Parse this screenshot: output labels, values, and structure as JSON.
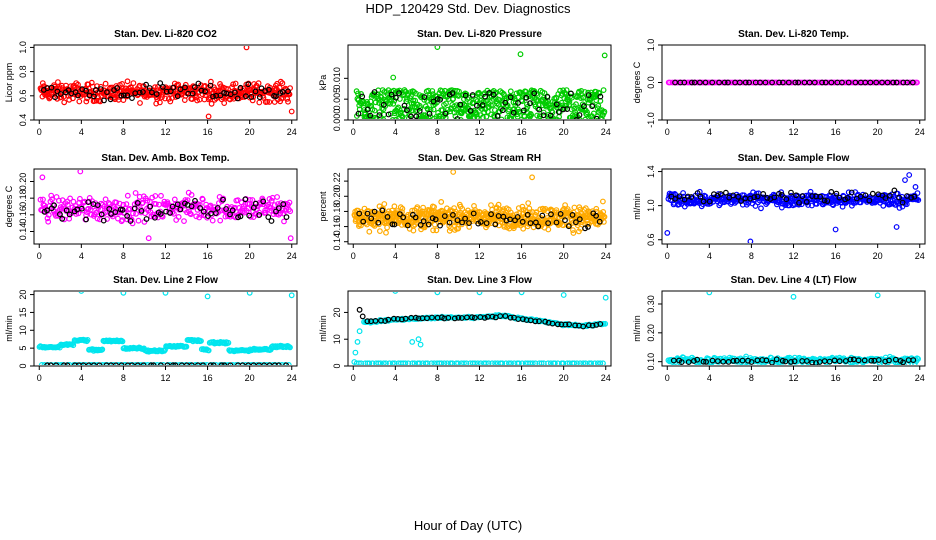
{
  "page": {
    "title": "HDP_120429  Std. Dev. Diagnostics",
    "x_caption": "Hour of Day (UTC)"
  },
  "chart_data": [
    {
      "type": "scatter",
      "title": "Stan. Dev. Li-820 CO2",
      "ylabel": "Licor ppm",
      "xlim": [
        -0.5,
        24.5
      ],
      "ylim": [
        0.4,
        1.02
      ],
      "xticks": [
        "0",
        "4",
        "8",
        "12",
        "16",
        "20",
        "24"
      ],
      "yticks": [
        "0.4",
        "0.6",
        "0.8",
        "1.0"
      ],
      "yticks_values": [
        0.4,
        0.6,
        0.8,
        1.0
      ],
      "series": [
        {
          "color": "#ff0000",
          "kind": "dense",
          "n": 420,
          "center": 0.63,
          "spread": 0.07,
          "x_from": 0.1,
          "x_to": 23.9,
          "outliers": [
            [
              19.7,
              1.0
            ],
            [
              16.1,
              0.43
            ],
            [
              24.0,
              0.47
            ]
          ]
        },
        {
          "color": "#000000",
          "kind": "dense",
          "n": 70,
          "center": 0.63,
          "spread": 0.06,
          "x_from": 0.3,
          "x_to": 23.8,
          "outliers": []
        }
      ]
    },
    {
      "type": "scatter",
      "title": "Stan. Dev. Li-820 Pressure",
      "ylabel": "kPa",
      "xlim": [
        -0.5,
        24.5
      ],
      "ylim": [
        0.0,
        0.018
      ],
      "xticks": [
        "0",
        "4",
        "8",
        "12",
        "16",
        "20",
        "24"
      ],
      "yticks": [
        "0.000",
        "0.005",
        "0.010"
      ],
      "yticks_values": [
        0.0,
        0.005,
        0.01
      ],
      "series": [
        {
          "color": "#00cc00",
          "kind": "band",
          "n": 560,
          "low": 0.0,
          "high": 0.0072,
          "x_from": 0.3,
          "x_to": 23.9,
          "outliers": [
            [
              8.0,
              0.0175
            ],
            [
              15.9,
              0.0158
            ],
            [
              23.9,
              0.0155
            ],
            [
              3.8,
              0.0102
            ]
          ]
        },
        {
          "color": "#000000",
          "kind": "band",
          "n": 60,
          "low": 0.0,
          "high": 0.0068,
          "x_from": 0.4,
          "x_to": 23.8,
          "outliers": []
        }
      ]
    },
    {
      "type": "scatter",
      "title": "Stan. Dev. Li-820 Temp.",
      "ylabel": "degrees C",
      "xlim": [
        -0.5,
        24.5
      ],
      "ylim": [
        -1.0,
        1.0
      ],
      "xticks": [
        "0",
        "4",
        "8",
        "12",
        "16",
        "20",
        "24"
      ],
      "yticks": [
        "-1.0",
        "0.0",
        "1.0"
      ],
      "yticks_values": [
        -1.0,
        0.0,
        1.0
      ],
      "series": [
        {
          "color": "#ff00ff",
          "kind": "line",
          "n": 150,
          "value": 0.0,
          "x_from": 0.1,
          "x_to": 23.9,
          "outliers": []
        },
        {
          "color": "#000000",
          "kind": "line",
          "n": 45,
          "value": 0.0,
          "x_from": 0.5,
          "x_to": 23.8,
          "outliers": []
        }
      ]
    },
    {
      "type": "scatter",
      "title": "Stan. Dev. Amb. Box Temp.",
      "ylabel": "degrees C",
      "xlim": [
        -0.5,
        24.5
      ],
      "ylim": [
        0.125,
        0.215
      ],
      "xticks": [
        "0",
        "4",
        "8",
        "12",
        "16",
        "20",
        "24"
      ],
      "yticks": [
        "0.14",
        "0.16",
        "0.18",
        "0.20"
      ],
      "yticks_values": [
        0.14,
        0.16,
        0.18,
        0.2
      ],
      "series": [
        {
          "color": "#ff00ff",
          "kind": "dense",
          "n": 330,
          "center": 0.168,
          "spread": 0.014,
          "x_from": 0.1,
          "x_to": 23.9,
          "outliers": [
            [
              0.3,
              0.205
            ],
            [
              3.9,
              0.212
            ],
            [
              10.4,
              0.132
            ],
            [
              23.9,
              0.132
            ]
          ]
        },
        {
          "color": "#000000",
          "kind": "dense",
          "n": 65,
          "center": 0.165,
          "spread": 0.013,
          "x_from": 0.3,
          "x_to": 23.8,
          "outliers": []
        }
      ]
    },
    {
      "type": "scatter",
      "title": "Stan. Dev. Gas Stream RH",
      "ylabel": "percent",
      "xlim": [
        -0.5,
        24.5
      ],
      "ylim": [
        0.137,
        0.236
      ],
      "xticks": [
        "0",
        "4",
        "8",
        "12",
        "16",
        "20",
        "24"
      ],
      "yticks": [
        "0.14",
        "0.16",
        "0.18",
        "0.20",
        "0.22"
      ],
      "yticks_values": [
        0.14,
        0.16,
        0.18,
        0.2,
        0.22
      ],
      "series": [
        {
          "color": "#ffaa00",
          "kind": "dense",
          "n": 620,
          "center": 0.172,
          "spread": 0.014,
          "x_from": 0.1,
          "x_to": 23.9,
          "outliers": [
            [
              9.5,
              0.232
            ],
            [
              17.0,
              0.225
            ]
          ]
        },
        {
          "color": "#000000",
          "kind": "dense",
          "n": 60,
          "center": 0.168,
          "spread": 0.012,
          "x_from": 0.4,
          "x_to": 23.8,
          "outliers": []
        }
      ]
    },
    {
      "type": "scatter",
      "title": "Stan. Dev. Sample Flow",
      "ylabel": "ml/min",
      "xlim": [
        -0.5,
        24.5
      ],
      "ylim": [
        0.55,
        1.43
      ],
      "xticks": [
        "0",
        "4",
        "8",
        "12",
        "16",
        "20",
        "24"
      ],
      "yticks": [
        "0.6",
        "1.0",
        "1.4"
      ],
      "yticks_values": [
        0.6,
        1.0,
        1.4
      ],
      "series": [
        {
          "color": "#0000ff",
          "kind": "dense",
          "n": 400,
          "center": 1.07,
          "spread": 0.07,
          "x_from": 0.1,
          "x_to": 23.9,
          "outliers": [
            [
              0.0,
              0.68
            ],
            [
              7.9,
              0.58
            ],
            [
              16.0,
              0.72
            ],
            [
              21.8,
              0.75
            ],
            [
              22.6,
              1.3
            ],
            [
              23.0,
              1.36
            ],
            [
              23.6,
              1.22
            ]
          ]
        },
        {
          "color": "#000000",
          "kind": "dense",
          "n": 60,
          "center": 1.1,
          "spread": 0.06,
          "x_from": 0.3,
          "x_to": 23.8,
          "outliers": []
        }
      ]
    },
    {
      "type": "scatter",
      "title": "Stan. Dev. Line 2 Flow",
      "ylabel": "ml/min",
      "xlim": [
        -0.5,
        24.5
      ],
      "ylim": [
        0,
        21
      ],
      "xticks": [
        "0",
        "4",
        "8",
        "12",
        "16",
        "20",
        "24"
      ],
      "yticks": [
        "0",
        "5",
        "10",
        "15",
        "20"
      ],
      "yticks_values": [
        0,
        5,
        10,
        15,
        20
      ],
      "series": [
        {
          "color": "#00e5ee",
          "kind": "steps",
          "n": 260,
          "x_from": 0.0,
          "x_to": 23.9,
          "steps": [
            [
              0,
              2,
              5.3
            ],
            [
              2,
              3.3,
              6.0
            ],
            [
              3.3,
              4.7,
              7.2
            ],
            [
              4.7,
              6,
              4.5
            ],
            [
              6,
              8,
              7.0
            ],
            [
              8,
              10,
              5.0
            ],
            [
              10,
              12,
              4.3
            ],
            [
              12,
              14,
              5.5
            ],
            [
              14,
              15.4,
              7.2
            ],
            [
              15.4,
              16.2,
              4.6
            ],
            [
              16.2,
              18,
              6.5
            ],
            [
              18,
              20,
              4.3
            ],
            [
              20,
              22,
              4.6
            ],
            [
              22,
              24,
              5.4
            ]
          ],
          "outliers": [
            [
              4.0,
              21
            ],
            [
              8.0,
              20.5
            ],
            [
              12.0,
              20.5
            ],
            [
              16.0,
              19.5
            ],
            [
              20.0,
              20.5
            ],
            [
              24.0,
              19.8
            ]
          ]
        },
        {
          "color": "#00e5ee",
          "kind": "line",
          "n": 80,
          "value": 0.3,
          "x_from": 0.2,
          "x_to": 23.9,
          "outliers": []
        },
        {
          "color": "#000000",
          "kind": "line",
          "n": 45,
          "value": 0.2,
          "x_from": 0.5,
          "x_to": 23.8,
          "outliers": []
        }
      ]
    },
    {
      "type": "scatter",
      "title": "Stan. Dev. Line 3 Flow",
      "ylabel": "ml/min",
      "xlim": [
        -0.5,
        24.5
      ],
      "ylim": [
        0,
        28
      ],
      "xticks": [
        "0",
        "4",
        "8",
        "12",
        "16",
        "20",
        "24"
      ],
      "yticks": [
        "0",
        "10",
        "20"
      ],
      "yticks_values": [
        0,
        10,
        20
      ],
      "series": [
        {
          "color": "#00e5ee",
          "kind": "curve",
          "n": 230,
          "x_from": 1.0,
          "x_to": 24.0,
          "curve": [
            [
              1.0,
              16.2
            ],
            [
              4.0,
              17.3
            ],
            [
              8.0,
              18.0
            ],
            [
              12.0,
              18.2
            ],
            [
              14.0,
              18.8
            ],
            [
              16.0,
              17.8
            ],
            [
              20.0,
              15.5
            ],
            [
              22.0,
              15.0
            ],
            [
              24.0,
              15.8
            ]
          ],
          "outliers": [
            [
              0.1,
              1.5
            ],
            [
              0.2,
              5
            ],
            [
              0.4,
              9
            ],
            [
              0.6,
              13
            ],
            [
              5.6,
              9
            ],
            [
              6.2,
              10
            ],
            [
              6.4,
              8
            ],
            [
              4.0,
              28
            ],
            [
              8.0,
              27.5
            ],
            [
              12.0,
              27.5
            ],
            [
              16.0,
              27.5
            ],
            [
              20.0,
              26.5
            ],
            [
              24.0,
              25.5
            ]
          ]
        },
        {
          "color": "#00e5ee",
          "kind": "line",
          "n": 90,
          "value": 1.0,
          "x_from": 0.2,
          "x_to": 23.9,
          "outliers": []
        },
        {
          "color": "#000000",
          "kind": "curve",
          "n": 55,
          "x_from": 1.2,
          "x_to": 23.8,
          "curve": [
            [
              1.0,
              16.5
            ],
            [
              4.0,
              17.5
            ],
            [
              8.0,
              18.0
            ],
            [
              12.0,
              18.0
            ],
            [
              14.0,
              18.6
            ],
            [
              16.0,
              17.5
            ],
            [
              20.0,
              15.5
            ],
            [
              22.0,
              15.0
            ],
            [
              24.0,
              15.6
            ]
          ],
          "outliers": [
            [
              0.6,
              21
            ],
            [
              0.9,
              18.5
            ]
          ]
        }
      ]
    },
    {
      "type": "scatter",
      "title": "Stan. Dev. Line 4 (LT) Flow",
      "ylabel": "ml/min",
      "xlim": [
        -0.5,
        24.5
      ],
      "ylim": [
        0.085,
        0.345
      ],
      "xticks": [
        "0",
        "4",
        "8",
        "12",
        "16",
        "20",
        "24"
      ],
      "yticks": [
        "0.10",
        "0.20",
        "0.30"
      ],
      "yticks_values": [
        0.1,
        0.2,
        0.3
      ],
      "series": [
        {
          "color": "#00e5ee",
          "kind": "dense",
          "n": 300,
          "center": 0.105,
          "spread": 0.009,
          "x_from": 0.1,
          "x_to": 23.9,
          "outliers": [
            [
              4.0,
              0.34
            ],
            [
              12.0,
              0.325
            ],
            [
              20.0,
              0.33
            ]
          ]
        },
        {
          "color": "#000000",
          "kind": "dense",
          "n": 50,
          "center": 0.103,
          "spread": 0.006,
          "x_from": 0.4,
          "x_to": 23.8,
          "outliers": []
        }
      ]
    }
  ]
}
